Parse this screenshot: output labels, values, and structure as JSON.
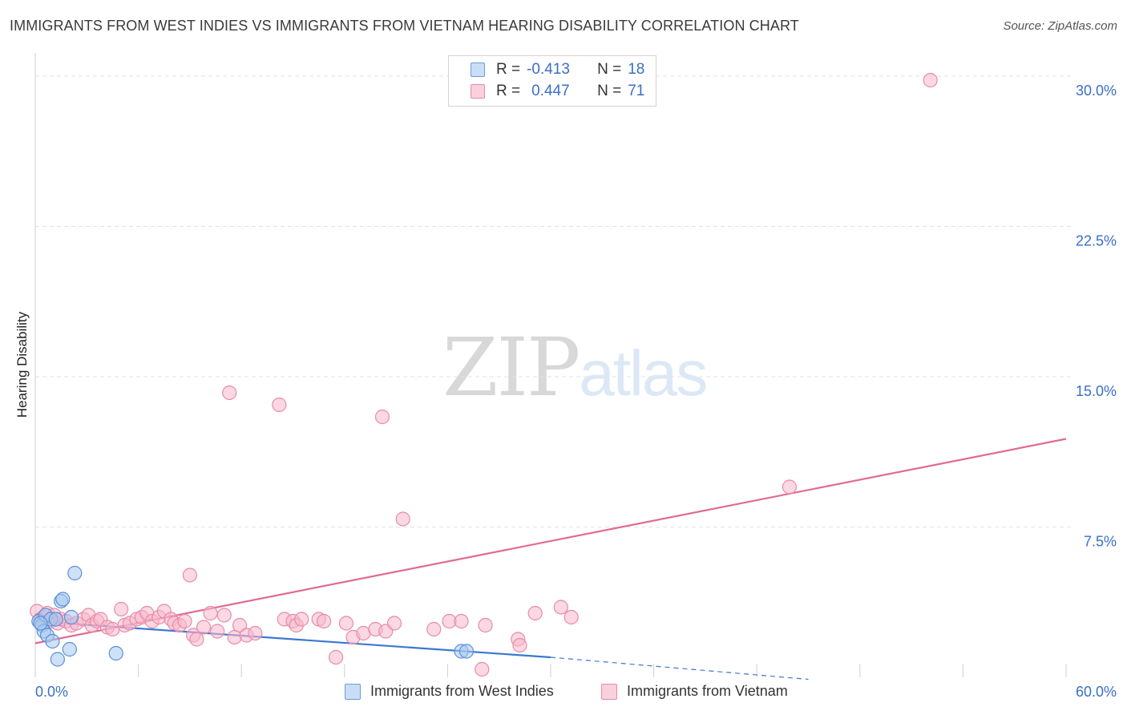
{
  "header": {
    "title": "IMMIGRANTS FROM WEST INDIES VS IMMIGRANTS FROM VIETNAM HEARING DISABILITY CORRELATION CHART",
    "source": "Source: ZipAtlas.com"
  },
  "watermark": {
    "part1": "ZIP",
    "part2": "atlas"
  },
  "legend": {
    "rows": [
      {
        "r_label": "R =",
        "r_value": "-0.413",
        "n_label": "N =",
        "n_value": "18",
        "color": "#a8c8f0"
      },
      {
        "r_label": "R =",
        "r_value": "0.447",
        "n_label": "N =",
        "n_value": "71",
        "color": "#f8b8cc"
      }
    ]
  },
  "bottom_legend": {
    "series1": "Immigrants from West Indies",
    "series2": "Immigrants from Vietnam"
  },
  "colors": {
    "west_indies_fill": "#a8c8f0",
    "west_indies_stroke": "#5b8fd6",
    "west_indies_line": "#3a78d0",
    "vietnam_fill": "#f8b8cc",
    "vietnam_stroke": "#e88aa8",
    "vietnam_line": "#e06a95",
    "grid": "#e3e3e3",
    "tick_label": "#3a6fc4"
  },
  "chart_data": {
    "type": "scatter",
    "title": "IMMIGRANTS FROM WEST INDIES VS IMMIGRANTS FROM VIETNAM HEARING DISABILITY CORRELATION CHART",
    "xlabel": "",
    "ylabel": "Hearing Disability",
    "xlim": [
      0,
      60
    ],
    "ylim": [
      0,
      31
    ],
    "x_tick_labels": [
      "0.0%",
      "60.0%"
    ],
    "y_ticks": [
      7.5,
      15.0,
      22.5,
      30.0
    ],
    "y_tick_labels": [
      "7.5%",
      "15.0%",
      "22.5%",
      "30.0%"
    ],
    "grid": true,
    "series": [
      {
        "name": "Immigrants from West Indies",
        "points": [
          [
            0.2,
            2.8
          ],
          [
            0.4,
            2.6
          ],
          [
            0.5,
            2.3
          ],
          [
            0.6,
            3.1
          ],
          [
            0.7,
            2.1
          ],
          [
            0.9,
            2.9
          ],
          [
            1.0,
            1.8
          ],
          [
            1.2,
            2.9
          ],
          [
            1.3,
            0.9
          ],
          [
            1.5,
            3.8
          ],
          [
            1.6,
            3.9
          ],
          [
            2.0,
            1.4
          ],
          [
            2.1,
            3.0
          ],
          [
            2.3,
            5.2
          ],
          [
            4.7,
            1.2
          ],
          [
            24.8,
            1.3
          ],
          [
            25.1,
            1.3
          ],
          [
            0.3,
            2.7
          ]
        ],
        "trend": {
          "x0": 0,
          "y0": 2.8,
          "x1": 30,
          "y1": 1.0,
          "dashed_to_x": 45,
          "dashed_to_y": -0.1
        }
      },
      {
        "name": "Immigrants from Vietnam",
        "points": [
          [
            0.1,
            3.3
          ],
          [
            0.3,
            2.9
          ],
          [
            0.5,
            3.0
          ],
          [
            0.7,
            3.2
          ],
          [
            0.9,
            2.8
          ],
          [
            1.1,
            3.1
          ],
          [
            1.3,
            2.7
          ],
          [
            1.5,
            2.9
          ],
          [
            1.8,
            2.8
          ],
          [
            2.1,
            2.6
          ],
          [
            2.4,
            2.7
          ],
          [
            2.8,
            2.9
          ],
          [
            3.1,
            3.1
          ],
          [
            3.3,
            2.6
          ],
          [
            3.6,
            2.8
          ],
          [
            3.8,
            2.9
          ],
          [
            4.2,
            2.5
          ],
          [
            4.5,
            2.4
          ],
          [
            5.0,
            3.4
          ],
          [
            5.2,
            2.6
          ],
          [
            5.5,
            2.7
          ],
          [
            5.9,
            2.9
          ],
          [
            6.2,
            3.0
          ],
          [
            6.5,
            3.2
          ],
          [
            6.8,
            2.8
          ],
          [
            7.2,
            3.0
          ],
          [
            7.5,
            3.3
          ],
          [
            7.9,
            2.9
          ],
          [
            8.1,
            2.7
          ],
          [
            8.4,
            2.6
          ],
          [
            8.7,
            2.8
          ],
          [
            9.0,
            5.1
          ],
          [
            9.2,
            2.1
          ],
          [
            9.4,
            1.9
          ],
          [
            9.8,
            2.5
          ],
          [
            10.2,
            3.2
          ],
          [
            10.6,
            2.3
          ],
          [
            11.0,
            3.1
          ],
          [
            11.3,
            14.2
          ],
          [
            11.6,
            2.0
          ],
          [
            11.9,
            2.6
          ],
          [
            12.3,
            2.1
          ],
          [
            12.8,
            2.2
          ],
          [
            14.2,
            13.6
          ],
          [
            14.5,
            2.9
          ],
          [
            15.0,
            2.8
          ],
          [
            15.2,
            2.6
          ],
          [
            15.5,
            2.9
          ],
          [
            16.5,
            2.9
          ],
          [
            16.8,
            2.8
          ],
          [
            17.5,
            1.0
          ],
          [
            18.1,
            2.7
          ],
          [
            18.5,
            2.0
          ],
          [
            19.1,
            2.2
          ],
          [
            19.8,
            2.4
          ],
          [
            20.2,
            13.0
          ],
          [
            20.4,
            2.3
          ],
          [
            20.9,
            2.7
          ],
          [
            21.4,
            7.9
          ],
          [
            23.2,
            2.4
          ],
          [
            24.1,
            2.8
          ],
          [
            24.8,
            2.8
          ],
          [
            26.0,
            0.4
          ],
          [
            26.2,
            2.6
          ],
          [
            28.1,
            1.9
          ],
          [
            28.2,
            1.6
          ],
          [
            29.1,
            3.2
          ],
          [
            30.6,
            3.5
          ],
          [
            31.2,
            3.0
          ],
          [
            43.9,
            9.5
          ],
          [
            52.1,
            29.8
          ]
        ],
        "trend": {
          "x0": 0,
          "y0": 1.7,
          "x1": 60,
          "y1": 11.9
        }
      }
    ]
  }
}
